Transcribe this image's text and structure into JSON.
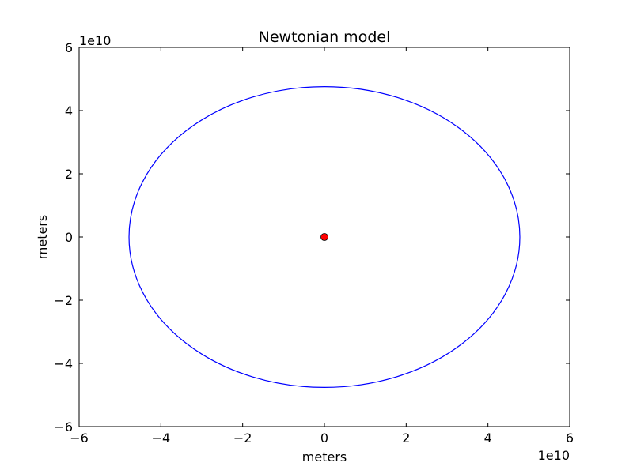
{
  "chart_data": {
    "type": "line",
    "title": "Newtonian model",
    "xlabel": "meters",
    "ylabel": "meters",
    "x_offset_label": "1e10",
    "y_offset_label": "1e10",
    "xlim": [
      -6,
      6
    ],
    "ylim": [
      -6,
      6
    ],
    "xticks": [
      -6,
      -4,
      -2,
      0,
      2,
      4,
      6
    ],
    "yticks": [
      -6,
      -4,
      -2,
      0,
      2,
      4,
      6
    ],
    "xtick_labels": [
      "−6",
      "−4",
      "−2",
      "0",
      "2",
      "4",
      "6"
    ],
    "ytick_labels": [
      "−6",
      "−4",
      "−2",
      "0",
      "2",
      "4",
      "6"
    ],
    "grid": false,
    "series": [
      {
        "kind": "orbit",
        "color": "#0000ff",
        "center": [
          0,
          0
        ],
        "semi_axis_x": 4.78,
        "semi_axis_y": 4.76
      }
    ],
    "markers": [
      {
        "kind": "central-body",
        "x": 0,
        "y": 0,
        "color": "#ff0000",
        "edge_color": "#000000"
      }
    ]
  }
}
